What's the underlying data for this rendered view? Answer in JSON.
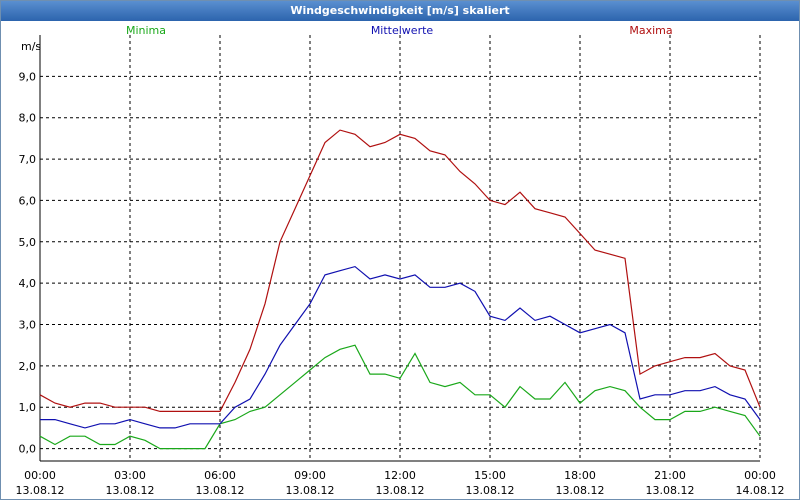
{
  "window": {
    "title": "Windgeschwindigkeit [m/s] skaliert"
  },
  "chart_data": {
    "type": "line",
    "title": "Windgeschwindigkeit [m/s] skaliert",
    "ylabel": "m/s",
    "xlabel": "",
    "ylim": [
      -0.3,
      10.0
    ],
    "xlim": [
      0,
      24
    ],
    "grid": true,
    "yticks": [
      0,
      1,
      2,
      3,
      4,
      5,
      6,
      7,
      8,
      9
    ],
    "ytick_labels": [
      "0,0",
      "1,0",
      "2,0",
      "3,0",
      "4,0",
      "5,0",
      "6,0",
      "7,0",
      "8,0",
      "9,0"
    ],
    "xticks": [
      0,
      3,
      6,
      9,
      12,
      15,
      18,
      21,
      24
    ],
    "xtick_times": [
      "00:00",
      "03:00",
      "06:00",
      "09:00",
      "12:00",
      "15:00",
      "18:00",
      "21:00",
      "00:00"
    ],
    "xtick_dates": [
      "13.08.12",
      "13.08.12",
      "13.08.12",
      "13.08.12",
      "13.08.12",
      "13.08.12",
      "13.08.12",
      "13.08.12",
      "14.08.12"
    ],
    "series": [
      {
        "name": "Minima",
        "color": "#1aa81a",
        "x": [
          0,
          0.5,
          1,
          1.5,
          2,
          2.5,
          3,
          3.5,
          4,
          4.5,
          5,
          5.5,
          6,
          6.5,
          7,
          7.5,
          8,
          8.5,
          9,
          9.5,
          10,
          10.5,
          11,
          11.5,
          12,
          12.5,
          13,
          13.5,
          14,
          14.5,
          15,
          15.5,
          16,
          16.5,
          17,
          17.5,
          18,
          18.5,
          19,
          19.5,
          20,
          20.5,
          21,
          21.5,
          22,
          22.5,
          23,
          23.5,
          24
        ],
        "values": [
          0.3,
          0.1,
          0.3,
          0.3,
          0.1,
          0.1,
          0.3,
          0.2,
          0.0,
          0.0,
          0.0,
          0.0,
          0.6,
          0.7,
          0.9,
          1.0,
          1.3,
          1.6,
          1.9,
          2.2,
          2.4,
          2.5,
          1.8,
          1.8,
          1.7,
          2.3,
          1.6,
          1.5,
          1.6,
          1.3,
          1.3,
          1.0,
          1.5,
          1.2,
          1.2,
          1.6,
          1.1,
          1.4,
          1.5,
          1.4,
          1.0,
          0.7,
          0.7,
          0.9,
          0.9,
          1.0,
          0.9,
          0.8,
          0.3
        ]
      },
      {
        "name": "Mittelwerte",
        "color": "#1010b0",
        "x": [
          0,
          0.5,
          1,
          1.5,
          2,
          2.5,
          3,
          3.5,
          4,
          4.5,
          5,
          5.5,
          6,
          6.5,
          7,
          7.5,
          8,
          8.5,
          9,
          9.5,
          10,
          10.5,
          11,
          11.5,
          12,
          12.5,
          13,
          13.5,
          14,
          14.5,
          15,
          15.5,
          16,
          16.5,
          17,
          17.5,
          18,
          18.5,
          19,
          19.5,
          20,
          20.5,
          21,
          21.5,
          22,
          22.5,
          23,
          23.5,
          24
        ],
        "values": [
          0.7,
          0.7,
          0.6,
          0.5,
          0.6,
          0.6,
          0.7,
          0.6,
          0.5,
          0.5,
          0.6,
          0.6,
          0.6,
          1.0,
          1.2,
          1.8,
          2.5,
          3.0,
          3.5,
          4.2,
          4.3,
          4.4,
          4.1,
          4.2,
          4.1,
          4.2,
          3.9,
          3.9,
          4.0,
          3.8,
          3.2,
          3.1,
          3.4,
          3.1,
          3.2,
          3.0,
          2.8,
          2.9,
          3.0,
          2.8,
          1.2,
          1.3,
          1.3,
          1.4,
          1.4,
          1.5,
          1.3,
          1.2,
          0.7
        ]
      },
      {
        "name": "Maxima",
        "color": "#b01010",
        "x": [
          0,
          0.5,
          1,
          1.5,
          2,
          2.5,
          3,
          3.5,
          4,
          4.5,
          5,
          5.5,
          6,
          6.5,
          7,
          7.5,
          8,
          8.5,
          9,
          9.5,
          10,
          10.5,
          11,
          11.5,
          12,
          12.5,
          13,
          13.5,
          14,
          14.5,
          15,
          15.5,
          16,
          16.5,
          17,
          17.5,
          18,
          18.5,
          19,
          19.5,
          20,
          20.5,
          21,
          21.5,
          22,
          22.5,
          23,
          23.5,
          24
        ],
        "values": [
          1.3,
          1.1,
          1.0,
          1.1,
          1.1,
          1.0,
          1.0,
          1.0,
          0.9,
          0.9,
          0.9,
          0.9,
          0.9,
          1.6,
          2.4,
          3.5,
          5.0,
          5.8,
          6.6,
          7.4,
          7.7,
          7.6,
          7.3,
          7.4,
          7.6,
          7.5,
          7.2,
          7.1,
          6.7,
          6.4,
          6.0,
          5.9,
          6.2,
          5.8,
          5.7,
          5.6,
          5.2,
          4.8,
          4.7,
          4.6,
          1.8,
          2.0,
          2.1,
          2.2,
          2.2,
          2.3,
          2.0,
          1.9,
          1.0
        ]
      }
    ]
  }
}
